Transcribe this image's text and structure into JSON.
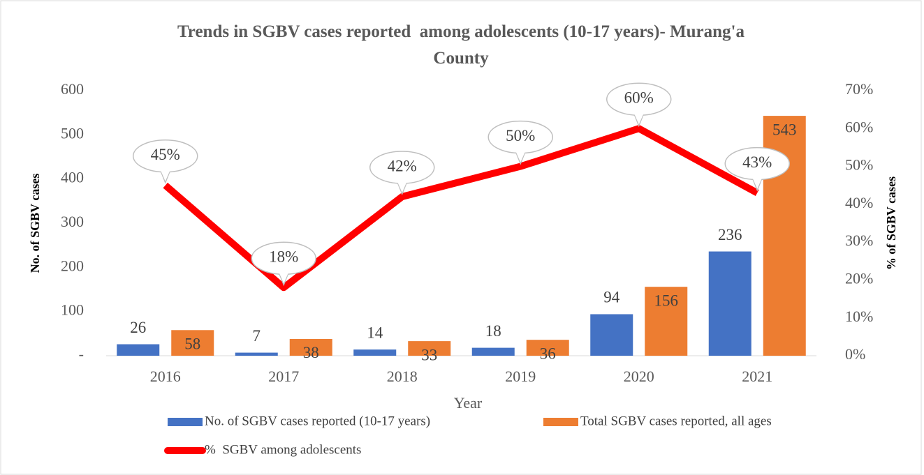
{
  "chart_data": {
    "type": "bar",
    "title": "Trends in SGBV cases reported  among adolescents (10-17 years)- Murang'a County",
    "xlabel": "Year",
    "ylabel": "No. of SGBV cases",
    "y2label": "% of SGBV cases",
    "categories": [
      "2016",
      "2017",
      "2018",
      "2019",
      "2020",
      "2021"
    ],
    "series": [
      {
        "name": "No. of SGBV cases reported (10-17 years)",
        "type": "bar",
        "color": "#4472c4",
        "values": [
          26,
          7,
          14,
          18,
          94,
          236
        ]
      },
      {
        "name": "Total SGBV cases reported, all ages",
        "type": "bar",
        "color": "#ed7d31",
        "values": [
          58,
          38,
          33,
          36,
          156,
          543
        ]
      },
      {
        "name": "%  SGBV among adolescents",
        "type": "line",
        "axis": "y2",
        "color": "#ff0000",
        "values": [
          45,
          18,
          42,
          50,
          60,
          43
        ],
        "value_labels": [
          "45%",
          "18%",
          "42%",
          "50%",
          "60%",
          "43%"
        ]
      }
    ],
    "ylim": [
      0,
      600
    ],
    "yticks": [
      {
        "value": 0,
        "label": "-"
      },
      100,
      200,
      300,
      400,
      500,
      600
    ],
    "y2lim": [
      0,
      70
    ],
    "y2ticks": [
      {
        "value": 0,
        "label": "0%"
      },
      {
        "value": 10,
        "label": "10%"
      },
      {
        "value": 20,
        "label": "20%"
      },
      {
        "value": 30,
        "label": "30%"
      },
      {
        "value": 40,
        "label": "40%"
      },
      {
        "value": 50,
        "label": "50%"
      },
      {
        "value": 60,
        "label": "60%"
      },
      {
        "value": 70,
        "label": "70%"
      }
    ],
    "grid": false,
    "legend": "bottom"
  }
}
